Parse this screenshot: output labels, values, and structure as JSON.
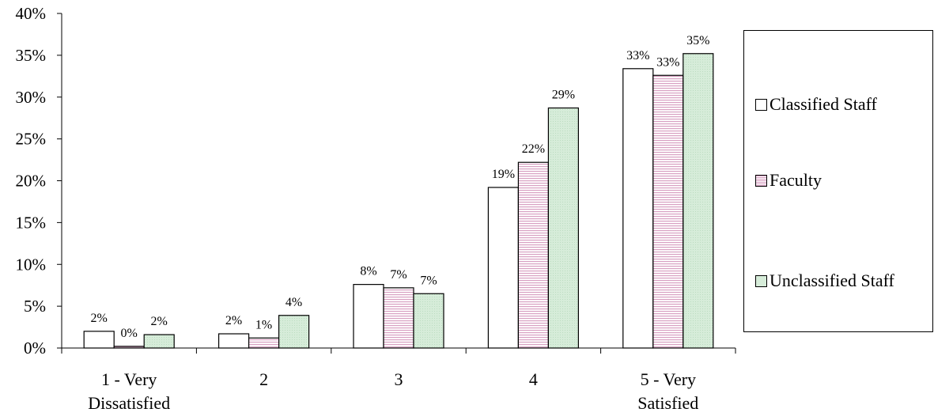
{
  "chart_data": {
    "type": "bar",
    "categories": [
      "1 - Very\nDissatisfied",
      "2",
      "3",
      "4",
      "5 - Very\nSatisfied"
    ],
    "series": [
      {
        "name": "Classified Staff",
        "values": [
          2,
          1.7,
          7.6,
          19.2,
          33.4
        ],
        "labels": [
          "2%",
          "2%",
          "8%",
          "19%",
          "33%"
        ],
        "color": "#ffffff"
      },
      {
        "name": "Faculty",
        "values": [
          0.2,
          1.2,
          7.2,
          22.2,
          32.6
        ],
        "labels": [
          "0%",
          "1%",
          "7%",
          "22%",
          "33%"
        ],
        "color": "#d8a0c2"
      },
      {
        "name": "Unclassified Staff",
        "values": [
          1.6,
          3.9,
          6.5,
          28.7,
          35.2
        ],
        "labels": [
          "2%",
          "4%",
          "7%",
          "29%",
          "35%"
        ],
        "color": "#d6ecd9"
      }
    ],
    "yticks": [
      "0%",
      "5%",
      "10%",
      "15%",
      "20%",
      "25%",
      "30%",
      "35%",
      "40%"
    ],
    "ylim": [
      0,
      40
    ],
    "legend_position": "right",
    "grid": false
  }
}
